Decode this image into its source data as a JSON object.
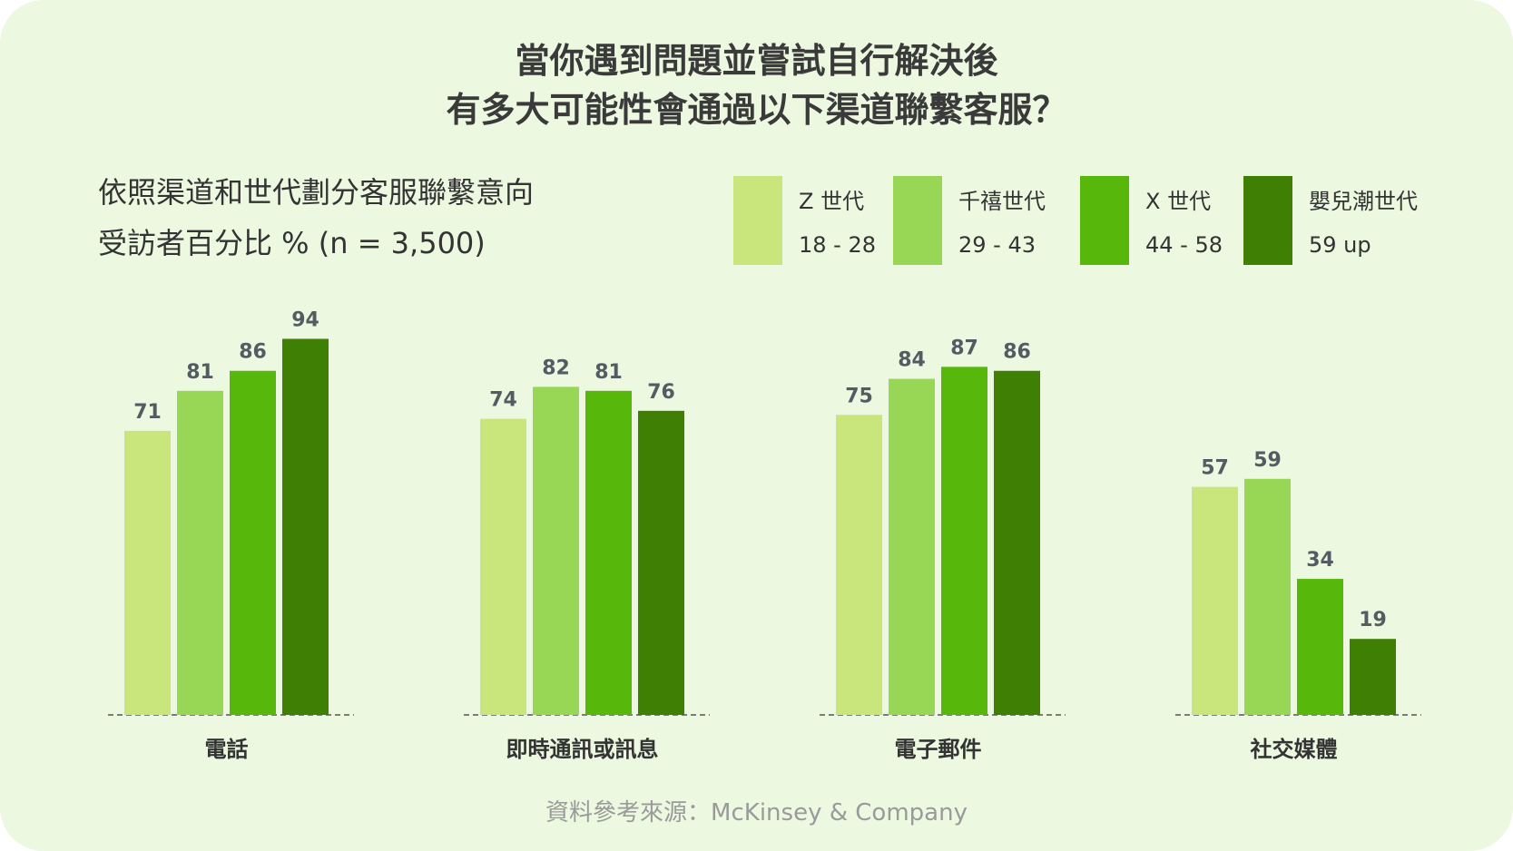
{
  "colors": {
    "background": "#ecf8e0",
    "series": [
      "#c8e67c",
      "#97d755",
      "#57b70b",
      "#3f8004"
    ],
    "value_label": "#555b63",
    "category_label": "#333333",
    "source": "#9a9a9a"
  },
  "header": {
    "title_line1": "當你遇到問題並嘗試自行解決後",
    "title_line2": "有多大可能性會通過以下渠道聯繫客服？",
    "subtitle_line1": "依照渠道和世代劃分客服聯繫意向",
    "subtitle_line2": "受訪者百分比 % (n = 3,500)"
  },
  "legend": [
    {
      "name": "Z 世代",
      "range": "18 - 28"
    },
    {
      "name": "千禧世代",
      "range": "29 - 43"
    },
    {
      "name": "X 世代",
      "range": "44 - 58"
    },
    {
      "name": "嬰兒潮世代",
      "range": "59 up"
    }
  ],
  "chart_data": {
    "type": "bar",
    "categories": [
      "電話",
      "即時通訊或訊息",
      "電子郵件",
      "社交媒體"
    ],
    "series": [
      {
        "name": "Z 世代",
        "values": [
          71,
          74,
          75,
          57
        ]
      },
      {
        "name": "千禧世代",
        "values": [
          81,
          82,
          84,
          59
        ]
      },
      {
        "name": "X 世代",
        "values": [
          86,
          81,
          87,
          34
        ]
      },
      {
        "name": "嬰兒潮世代",
        "values": [
          94,
          76,
          86,
          19
        ]
      }
    ],
    "ylim": [
      0,
      100
    ],
    "grid": false,
    "legend_position": "top-right"
  },
  "footer": {
    "source": "資料參考來源：McKinsey & Company"
  }
}
